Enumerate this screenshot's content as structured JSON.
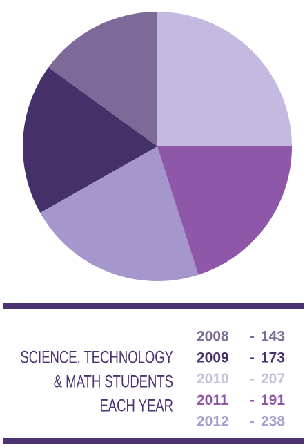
{
  "chart_data": {
    "type": "pie",
    "title_lines": [
      "SCIENCE, TECHNOLOGY",
      "& MATH STUDENTS",
      "EACH YEAR"
    ],
    "categories": [
      "2008",
      "2009",
      "2010",
      "2011",
      "2012"
    ],
    "values": [
      143,
      173,
      207,
      191,
      238
    ],
    "separator": "-",
    "colors": [
      "#7e6a98",
      "#45306a",
      "#a596cc",
      "#8f57a8",
      "#c4b9de"
    ],
    "legend_colors": [
      "#7e6a98",
      "#45306a",
      "#c9c0e0",
      "#8f57a8",
      "#a99ccf"
    ],
    "start_angle": 90,
    "direction": "counterclockwise"
  }
}
